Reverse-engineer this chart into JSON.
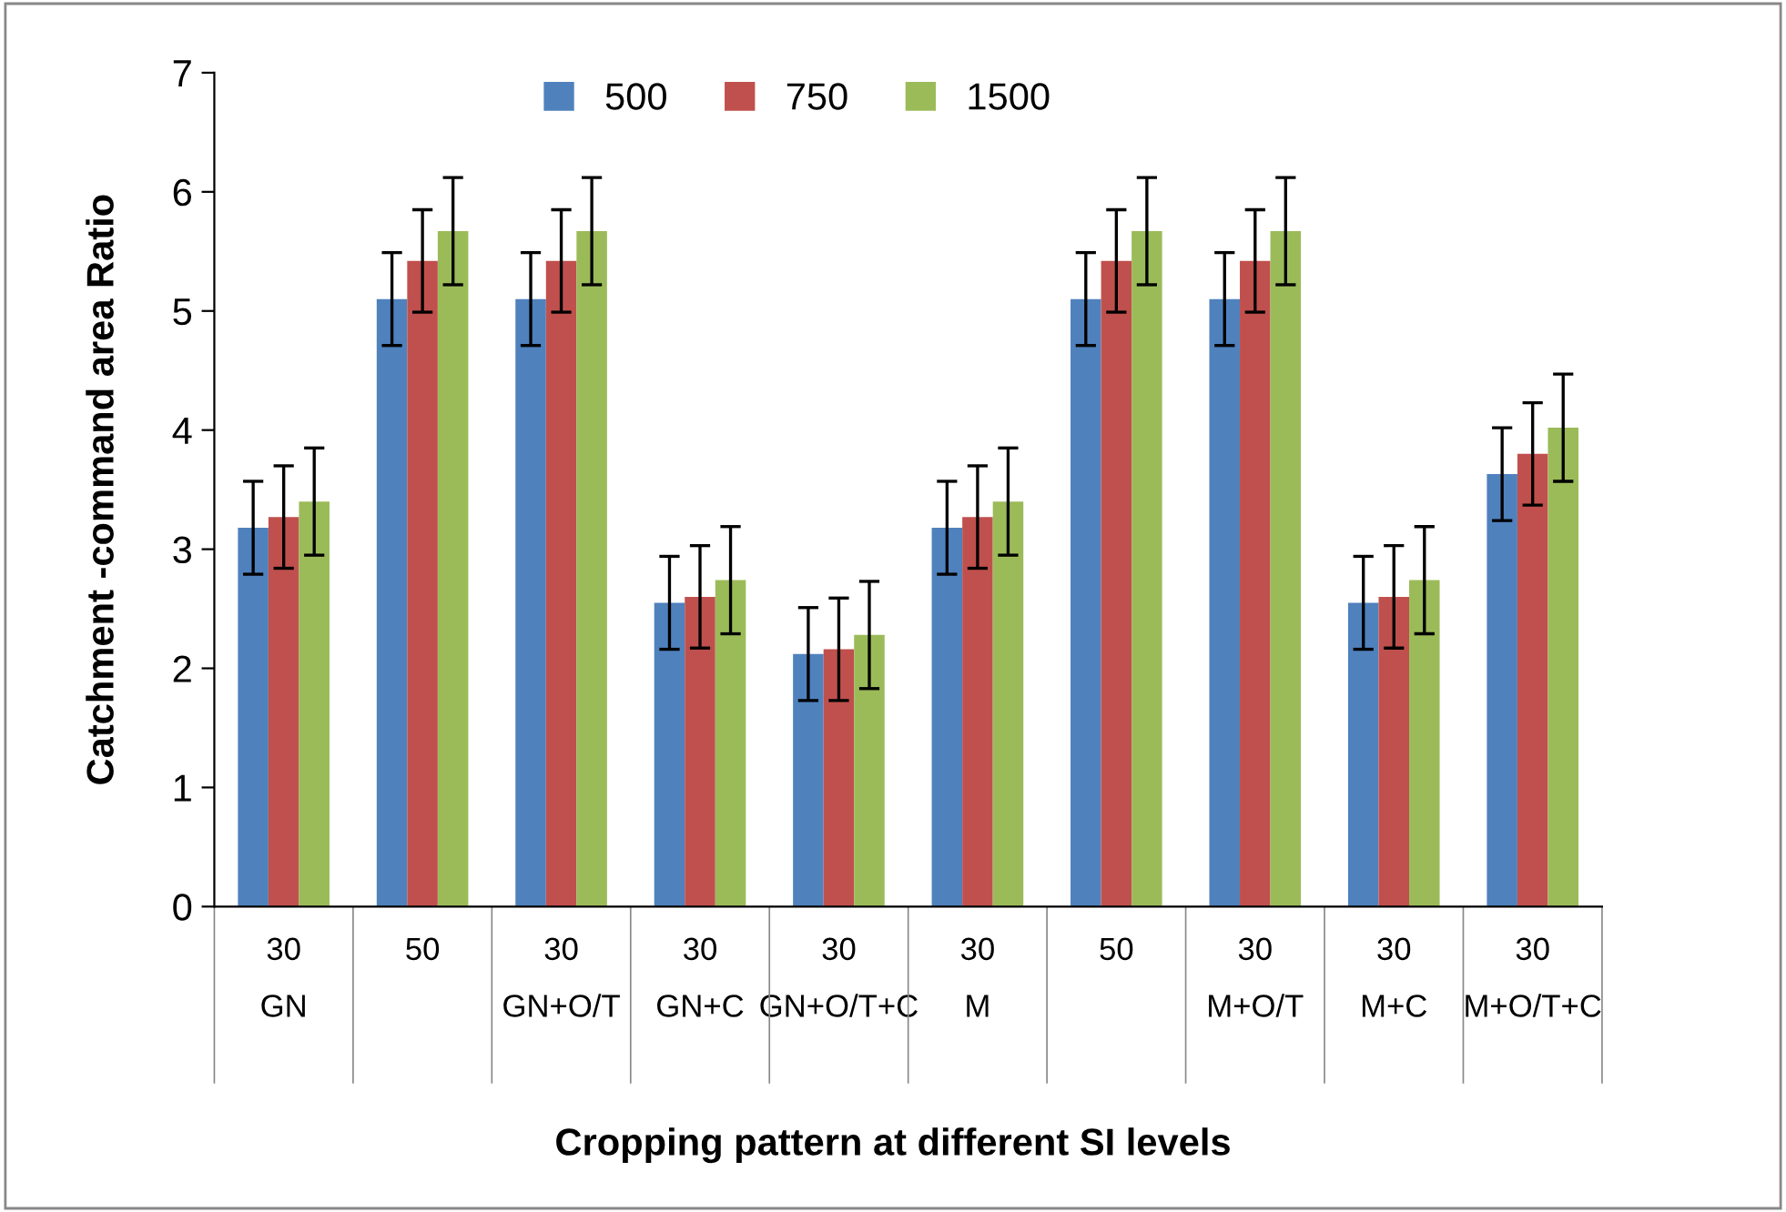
{
  "chart_data": {
    "type": "bar",
    "xlabel": "Cropping pattern at different SI levels",
    "ylabel": "Catchment -command area Ratio",
    "categories": [
      "30\nGN",
      "50",
      "30\nGN+O/T",
      "30\nGN+C",
      "30\nGN+O/T+C",
      "30\nM",
      "50",
      "30\nM+O/T",
      "30\nM+C",
      "30\nM+O/T+C"
    ],
    "series": [
      {
        "name": "500",
        "color": "#4f81bd",
        "values": [
          3.18,
          5.1,
          5.1,
          2.55,
          2.12,
          3.18,
          5.1,
          5.1,
          2.55,
          3.63
        ],
        "errors": [
          0.39,
          0.39,
          0.39,
          0.39,
          0.39,
          0.39,
          0.39,
          0.39,
          0.39,
          0.39
        ]
      },
      {
        "name": "750",
        "color": "#c0504d",
        "values": [
          3.27,
          5.42,
          5.42,
          2.6,
          2.16,
          3.27,
          5.42,
          5.42,
          2.6,
          3.8
        ],
        "errors": [
          0.43,
          0.43,
          0.43,
          0.43,
          0.43,
          0.43,
          0.43,
          0.43,
          0.43,
          0.43
        ]
      },
      {
        "name": "1500",
        "color": "#9bbb59",
        "values": [
          3.4,
          5.67,
          5.67,
          2.74,
          2.28,
          3.4,
          5.67,
          5.67,
          2.74,
          4.02
        ],
        "errors": [
          0.45,
          0.45,
          0.45,
          0.45,
          0.45,
          0.45,
          0.45,
          0.45,
          0.45,
          0.45
        ]
      }
    ],
    "ylim": [
      0,
      7
    ],
    "yticks": [
      0,
      1,
      2,
      3,
      4,
      5,
      6,
      7
    ],
    "grid": false,
    "legend": "top"
  }
}
